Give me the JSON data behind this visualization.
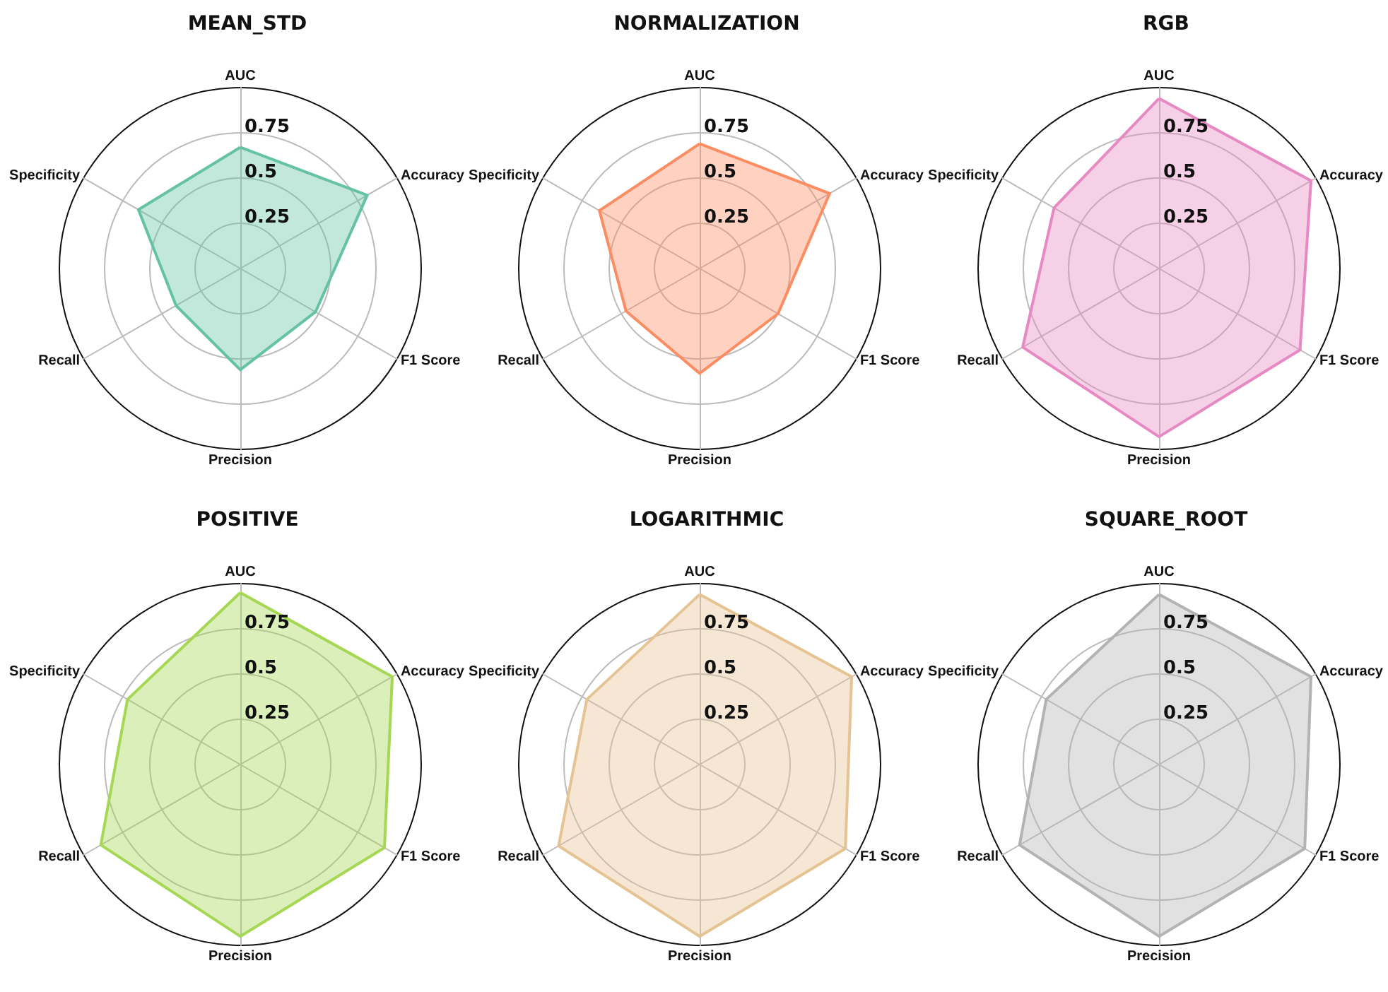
{
  "chart_data": [
    {
      "type": "radar",
      "title": "MEAN_STD",
      "categories": [
        "AUC",
        "Accuracy",
        "F1 Score",
        "Precision",
        "Recall",
        "Specificity"
      ],
      "ylim": [
        0,
        1
      ],
      "yticks": [
        0.25,
        0.5,
        0.75
      ],
      "series": [
        {
          "color": "#66c2a5",
          "values": [
            0.67,
            0.81,
            0.48,
            0.56,
            0.41,
            0.65
          ]
        }
      ]
    },
    {
      "type": "radar",
      "title": "NORMALIZATION",
      "categories": [
        "AUC",
        "Accuracy",
        "F1 Score",
        "Precision",
        "Recall",
        "Specificity"
      ],
      "ylim": [
        0,
        1
      ],
      "yticks": [
        0.25,
        0.5,
        0.75
      ],
      "series": [
        {
          "color": "#fc8d62",
          "values": [
            0.69,
            0.83,
            0.5,
            0.58,
            0.47,
            0.64
          ]
        }
      ]
    },
    {
      "type": "radar",
      "title": "RGB",
      "categories": [
        "AUC",
        "Accuracy",
        "F1 Score",
        "Precision",
        "Recall",
        "Specificity"
      ],
      "ylim": [
        0,
        1
      ],
      "yticks": [
        0.25,
        0.5,
        0.75
      ],
      "series": [
        {
          "color": "#e78ac3",
          "values": [
            0.94,
            0.97,
            0.9,
            0.93,
            0.87,
            0.67
          ]
        }
      ]
    },
    {
      "type": "radar",
      "title": "POSITIVE",
      "categories": [
        "AUC",
        "Accuracy",
        "F1 Score",
        "Precision",
        "Recall",
        "Specificity"
      ],
      "ylim": [
        0,
        1
      ],
      "yticks": [
        0.25,
        0.5,
        0.75
      ],
      "series": [
        {
          "color": "#a6d854",
          "values": [
            0.95,
            0.97,
            0.92,
            0.95,
            0.89,
            0.72
          ]
        }
      ]
    },
    {
      "type": "radar",
      "title": "LOGARITHMIC",
      "categories": [
        "AUC",
        "Accuracy",
        "F1 Score",
        "Precision",
        "Recall",
        "Specificity"
      ],
      "ylim": [
        0,
        1
      ],
      "yticks": [
        0.25,
        0.5,
        0.75
      ],
      "series": [
        {
          "color": "#e5c494",
          "values": [
            0.94,
            0.97,
            0.93,
            0.95,
            0.9,
            0.72
          ]
        }
      ]
    },
    {
      "type": "radar",
      "title": "SQUARE_ROOT",
      "categories": [
        "AUC",
        "Accuracy",
        "F1 Score",
        "Precision",
        "Recall",
        "Specificity"
      ],
      "ylim": [
        0,
        1
      ],
      "yticks": [
        0.25,
        0.5,
        0.75
      ],
      "series": [
        {
          "color": "#b3b3b3",
          "values": [
            0.94,
            0.97,
            0.93,
            0.95,
            0.89,
            0.72
          ]
        }
      ]
    }
  ]
}
